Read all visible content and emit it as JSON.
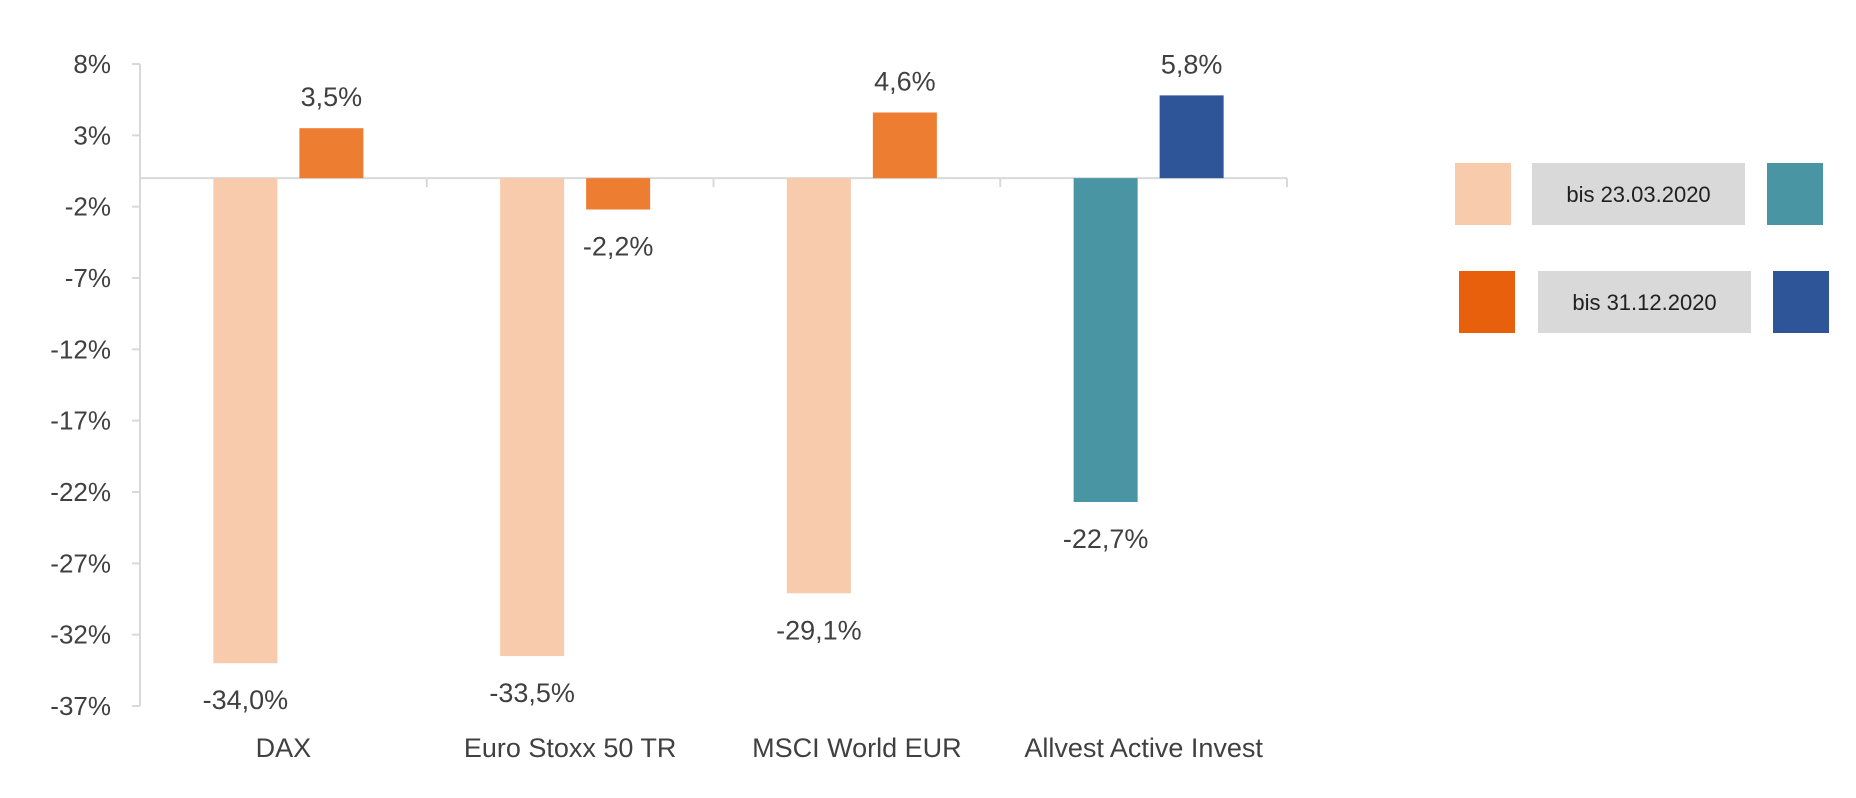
{
  "chart_data": {
    "type": "bar",
    "title": "",
    "xlabel": "",
    "ylabel": "",
    "ylim": [
      -37,
      8
    ],
    "yticks": [
      8,
      3,
      -2,
      -7,
      -12,
      -17,
      -22,
      -27,
      -32,
      -37
    ],
    "yticks_labels": [
      "8%",
      "3%",
      "-2%",
      "-7%",
      "-12%",
      "-17%",
      "-22%",
      "-27%",
      "-32%",
      "-37%"
    ],
    "categories": [
      "DAX",
      "Euro Stoxx 50 TR",
      "MSCI World EUR",
      "Allvest Active Invest"
    ],
    "series": [
      {
        "name": "bis 23.03.2020",
        "values": [
          -34.0,
          -33.5,
          -29.1,
          -22.7
        ],
        "labels": [
          "-34,0%",
          "-33,5%",
          "-29,1%",
          "-22,7%"
        ],
        "colors": [
          "#F8CBAD",
          "#F8CBAD",
          "#F8CBAD",
          "#4A95A4"
        ]
      },
      {
        "name": "bis 31.12.2020",
        "values": [
          3.5,
          -2.2,
          4.6,
          5.8
        ],
        "labels": [
          "3,5%",
          "-2,2%",
          "4,6%",
          "5,8%"
        ],
        "colors": [
          "#ED7D31",
          "#ED7D31",
          "#ED7D31",
          "#2E5597"
        ]
      }
    ],
    "legend": {
      "position": "right",
      "items": [
        {
          "label": "bis 23.03.2020",
          "swatch_left": "#F8CBAD",
          "swatch_right": "#4A95A4",
          "label_bg": "#D9D9D9"
        },
        {
          "label": "bis 31.12.2020",
          "swatch_left": "#E8600C",
          "swatch_right": "#2E5597",
          "label_bg": "#D9D9D9"
        }
      ]
    },
    "axis_color": "#D9D9D9",
    "grid": false
  }
}
